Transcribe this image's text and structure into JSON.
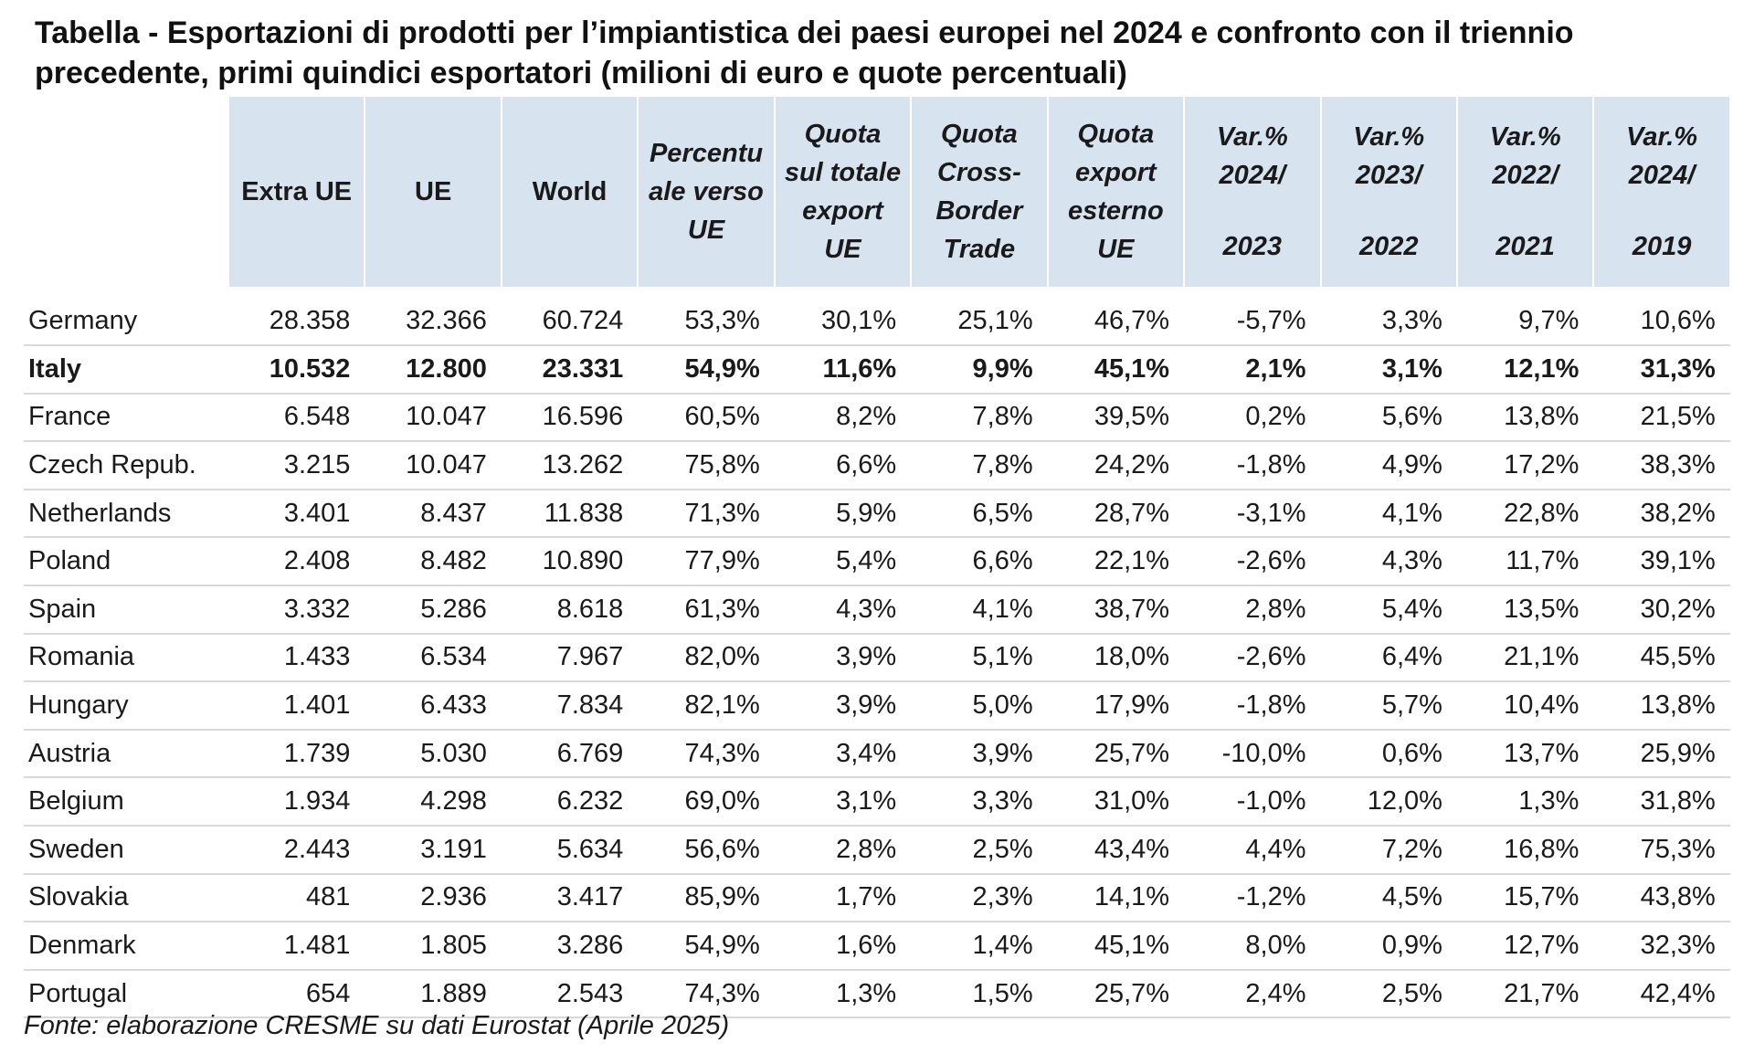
{
  "title": "Tabella - Esportazioni di prodotti per l’impiantistica dei paesi europei nel 2024 e confronto con il triennio precedente, primi quindici esportatori (milioni di euro e quote percentuali)",
  "headers": {
    "extra_ue": "Extra UE",
    "ue": "UE",
    "world": "World",
    "perc_ue": [
      "Percentu",
      "ale verso",
      "UE"
    ],
    "quota_totale": [
      "Quota",
      "sul totale",
      "export",
      "UE"
    ],
    "quota_cross": [
      "Quota",
      "Cross-",
      "Border",
      "Trade"
    ],
    "quota_export": [
      "Quota",
      "export",
      "esterno",
      "UE"
    ],
    "var1": [
      "Var.%",
      "2024/",
      "2023"
    ],
    "var2": [
      "Var.%",
      "2023/",
      "2022"
    ],
    "var3": [
      "Var.%",
      "2022/",
      "2021"
    ],
    "var4": [
      "Var.%",
      "2024/",
      "2019"
    ]
  },
  "rows": [
    {
      "country": "Germany",
      "values": [
        "28.358",
        "32.366",
        "60.724",
        "53,3%",
        "30,1%",
        "25,1%",
        "46,7%",
        "-5,7%",
        "3,3%",
        "9,7%",
        "10,6%"
      ]
    },
    {
      "country": "Italy",
      "values": [
        "10.532",
        "12.800",
        "23.331",
        "54,9%",
        "11,6%",
        "9,9%",
        "45,1%",
        "2,1%",
        "3,1%",
        "12,1%",
        "31,3%"
      ]
    },
    {
      "country": "France",
      "values": [
        "6.548",
        "10.047",
        "16.596",
        "60,5%",
        "8,2%",
        "7,8%",
        "39,5%",
        "0,2%",
        "5,6%",
        "13,8%",
        "21,5%"
      ]
    },
    {
      "country": "Czech Repub.",
      "values": [
        "3.215",
        "10.047",
        "13.262",
        "75,8%",
        "6,6%",
        "7,8%",
        "24,2%",
        "-1,8%",
        "4,9%",
        "17,2%",
        "38,3%"
      ]
    },
    {
      "country": "Netherlands",
      "values": [
        "3.401",
        "8.437",
        "11.838",
        "71,3%",
        "5,9%",
        "6,5%",
        "28,7%",
        "-3,1%",
        "4,1%",
        "22,8%",
        "38,2%"
      ]
    },
    {
      "country": "Poland",
      "values": [
        "2.408",
        "8.482",
        "10.890",
        "77,9%",
        "5,4%",
        "6,6%",
        "22,1%",
        "-2,6%",
        "4,3%",
        "11,7%",
        "39,1%"
      ]
    },
    {
      "country": "Spain",
      "values": [
        "3.332",
        "5.286",
        "8.618",
        "61,3%",
        "4,3%",
        "4,1%",
        "38,7%",
        "2,8%",
        "5,4%",
        "13,5%",
        "30,2%"
      ]
    },
    {
      "country": "Romania",
      "values": [
        "1.433",
        "6.534",
        "7.967",
        "82,0%",
        "3,9%",
        "5,1%",
        "18,0%",
        "-2,6%",
        "6,4%",
        "21,1%",
        "45,5%"
      ]
    },
    {
      "country": "Hungary",
      "values": [
        "1.401",
        "6.433",
        "7.834",
        "82,1%",
        "3,9%",
        "5,0%",
        "17,9%",
        "-1,8%",
        "5,7%",
        "10,4%",
        "13,8%"
      ]
    },
    {
      "country": "Austria",
      "values": [
        "1.739",
        "5.030",
        "6.769",
        "74,3%",
        "3,4%",
        "3,9%",
        "25,7%",
        "-10,0%",
        "0,6%",
        "13,7%",
        "25,9%"
      ]
    },
    {
      "country": "Belgium",
      "values": [
        "1.934",
        "4.298",
        "6.232",
        "69,0%",
        "3,1%",
        "3,3%",
        "31,0%",
        "-1,0%",
        "12,0%",
        "1,3%",
        "31,8%"
      ]
    },
    {
      "country": "Sweden",
      "values": [
        "2.443",
        "3.191",
        "5.634",
        "56,6%",
        "2,8%",
        "2,5%",
        "43,4%",
        "4,4%",
        "7,2%",
        "16,8%",
        "75,3%"
      ]
    },
    {
      "country": "Slovakia",
      "values": [
        "481",
        "2.936",
        "3.417",
        "85,9%",
        "1,7%",
        "2,3%",
        "14,1%",
        "-1,2%",
        "4,5%",
        "15,7%",
        "43,8%"
      ]
    },
    {
      "country": "Denmark",
      "values": [
        "1.481",
        "1.805",
        "3.286",
        "54,9%",
        "1,6%",
        "1,4%",
        "45,1%",
        "8,0%",
        "0,9%",
        "12,7%",
        "32,3%"
      ]
    },
    {
      "country": "Portugal",
      "values": [
        "654",
        "1.889",
        "2.543",
        "74,3%",
        "1,3%",
        "1,5%",
        "25,7%",
        "2,4%",
        "2,5%",
        "21,7%",
        "42,4%"
      ]
    }
  ],
  "highlight_country": "Italy",
  "source": "Fonte: elaborazione CRESME su dati Eurostat (Aprile 2025)",
  "colors": {
    "header_bg": "#d8e3f0",
    "row_divider": "#d9d9d9"
  }
}
